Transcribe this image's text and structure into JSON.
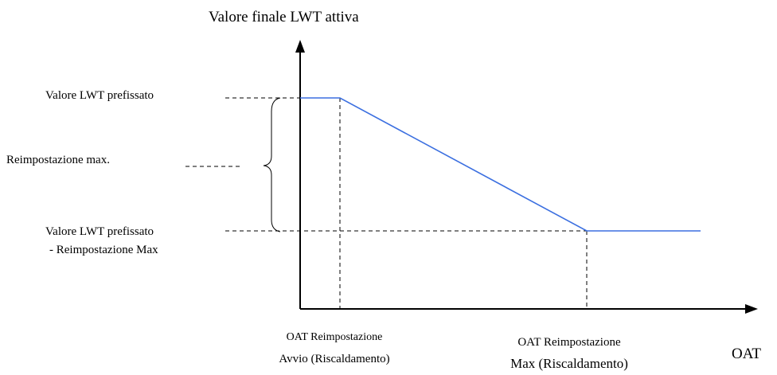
{
  "title": "Valore finale LWT attiva",
  "left_labels": {
    "top": "Valore LWT prefissato",
    "middle": "Reimpostazione max.",
    "bottom": [
      "Valore LWT prefissato",
      "- Reimpostazione Max"
    ]
  },
  "bottom_labels": {
    "start": [
      "OAT Reimpostazione",
      "Avvio (Riscaldamento)"
    ],
    "max": [
      "OAT Reimpostazione",
      "Max (Riscaldamento)"
    ]
  },
  "x_axis_label": "OAT"
}
